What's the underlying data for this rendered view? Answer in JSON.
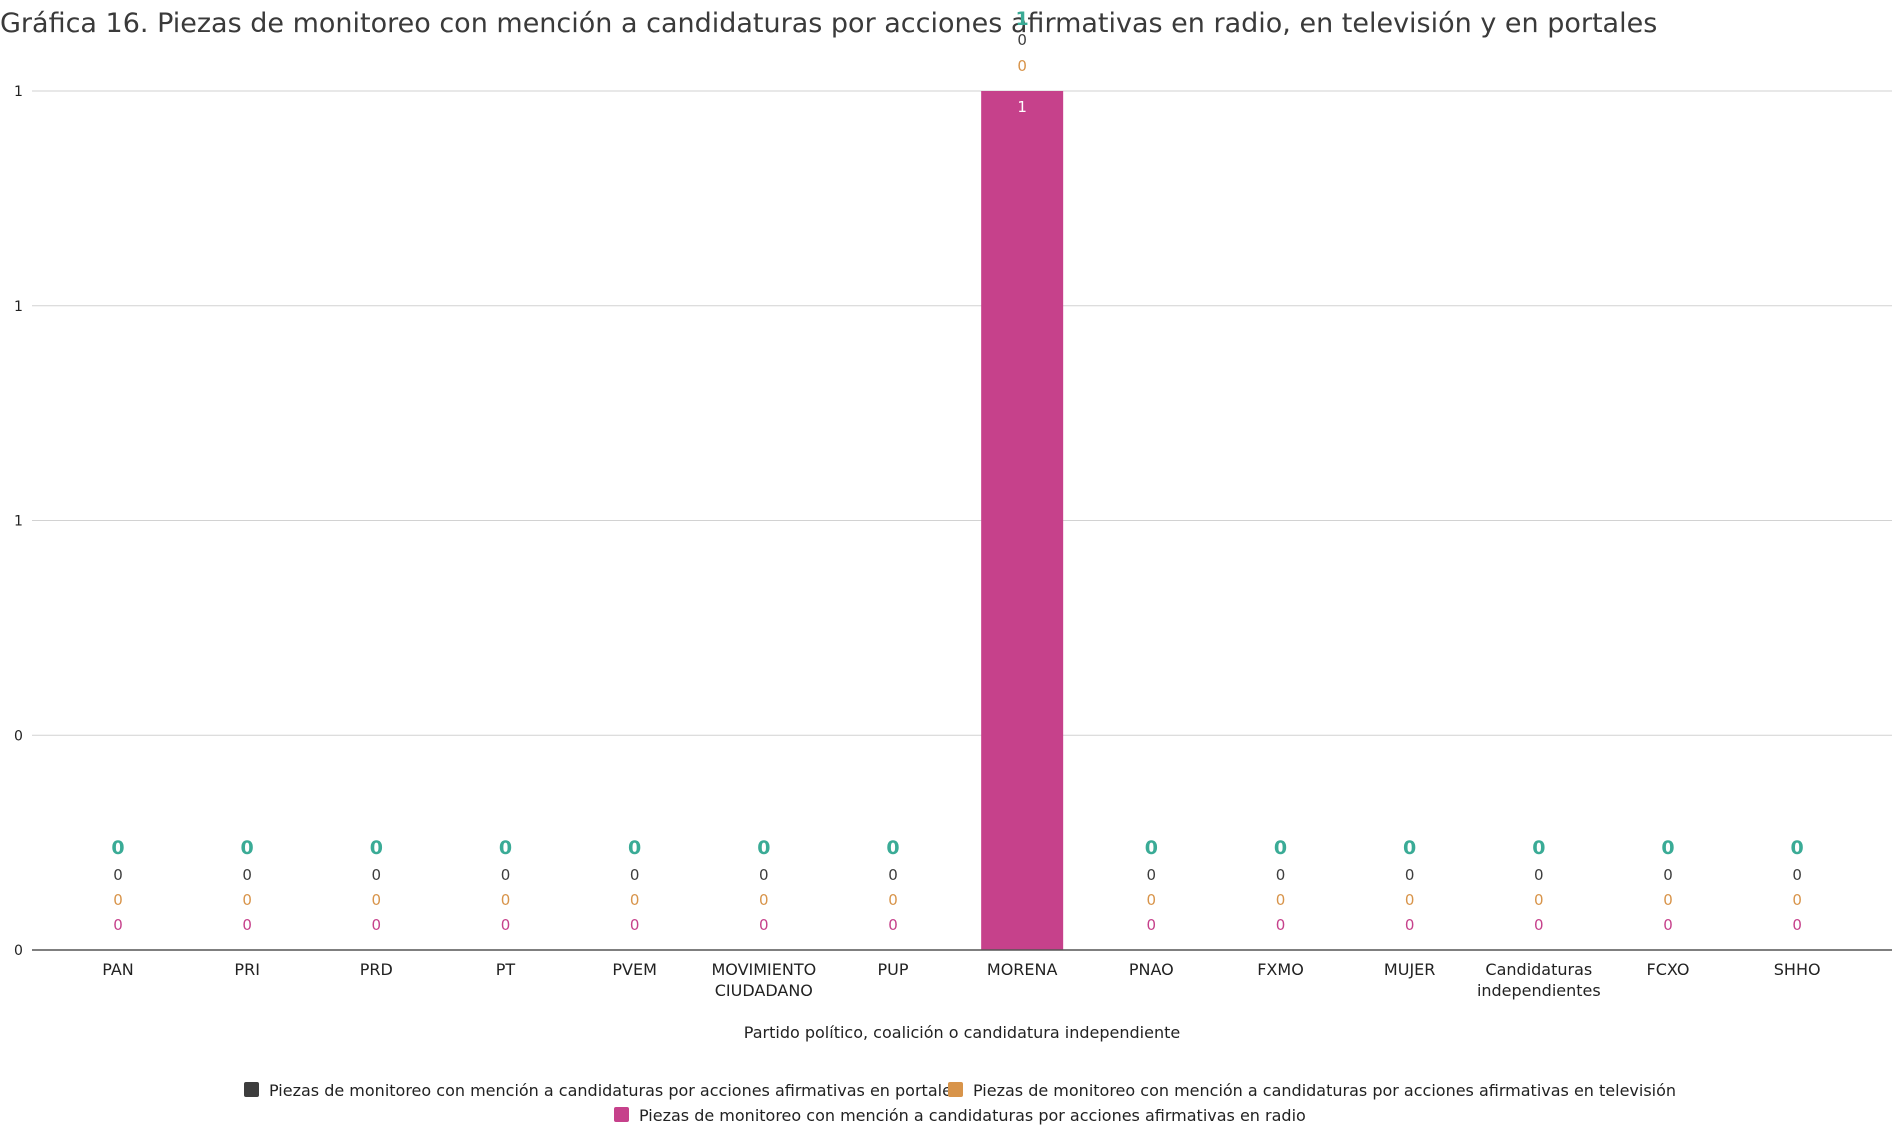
{
  "chart_data": {
    "type": "bar",
    "stacked": true,
    "title": "Gráfica 16. Piezas de monitoreo con mención a candidaturas por acciones afirmativas en radio, en televisión y en portales",
    "xlabel": "Partido político, coalición o candidatura independiente",
    "ylabel": "",
    "categories": [
      "PAN",
      "PRI",
      "PRD",
      "PT",
      "PVEM",
      "MOVIMIENTO CIUDADANO",
      "PUP",
      "MORENA",
      "PNAO",
      "FXMO",
      "MUJER",
      "Candidaturas independientes",
      "FCXO",
      "SHHO"
    ],
    "series": [
      {
        "name": "Piezas de monitoreo con mención a candidaturas por acciones afirmativas en portales",
        "color": "#3d3d3d",
        "values": [
          0,
          0,
          0,
          0,
          0,
          0,
          0,
          0,
          0,
          0,
          0,
          0,
          0,
          0
        ]
      },
      {
        "name": "Piezas de monitoreo con mención a candidaturas por acciones afirmativas en televisión",
        "color": "#d8944a",
        "values": [
          0,
          0,
          0,
          0,
          0,
          0,
          0,
          0,
          0,
          0,
          0,
          0,
          0,
          0
        ]
      },
      {
        "name": "Piezas de monitoreo con mención a candidaturas por acciones afirmativas en radio",
        "color": "#c6418b",
        "values": [
          0,
          0,
          0,
          0,
          0,
          0,
          0,
          1,
          0,
          0,
          0,
          0,
          0,
          0
        ]
      }
    ],
    "totals": [
      0,
      0,
      0,
      0,
      0,
      0,
      0,
      1,
      0,
      0,
      0,
      0,
      0,
      0
    ],
    "total_color": "#3aab96",
    "ylim": [
      0,
      1
    ],
    "ytick_labels": [
      "0",
      "0",
      "1",
      "1",
      "1"
    ],
    "grid": true,
    "legend": "bottom"
  }
}
